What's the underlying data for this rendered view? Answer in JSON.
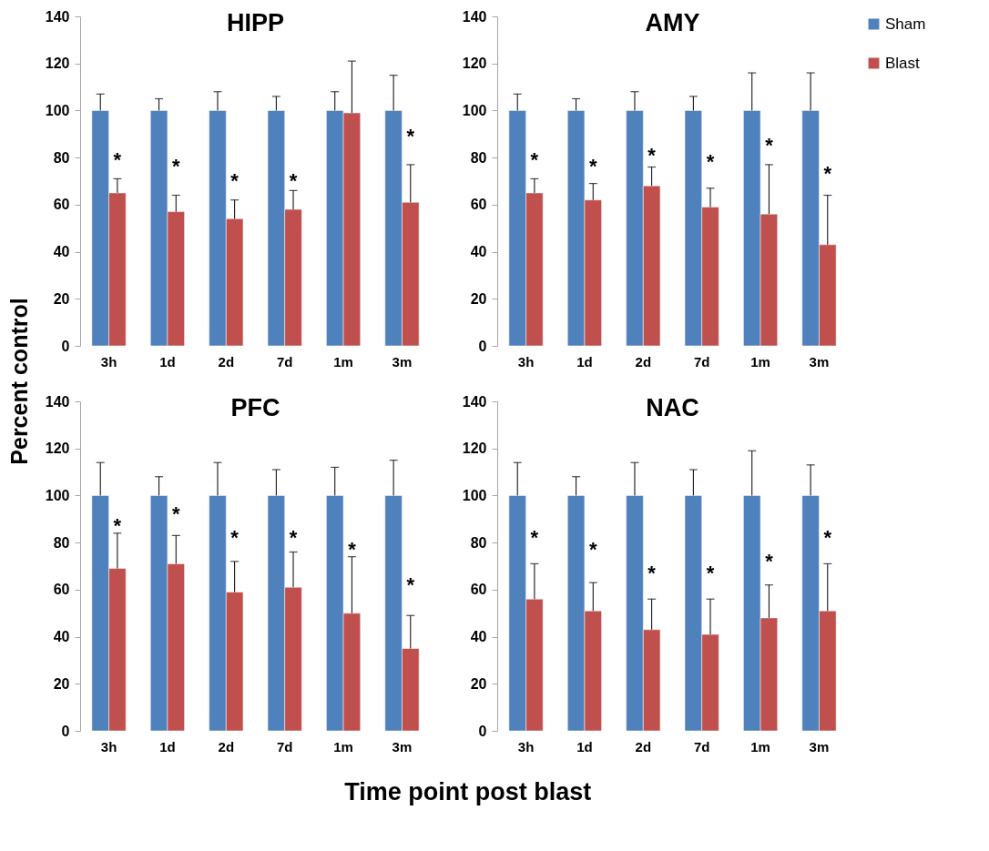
{
  "chart_data": [
    {
      "type": "bar",
      "title": "HIPP",
      "ylabel": "Percent control",
      "categories": [
        "3h",
        "1d",
        "2d",
        "7d",
        "1m",
        "3m"
      ],
      "ylim": [
        0,
        140
      ],
      "yticks": [
        0,
        20,
        40,
        60,
        80,
        100,
        120,
        140
      ],
      "legend": false,
      "series": [
        {
          "color": "#4f81bd",
          "values": [
            100,
            100,
            100,
            100,
            100,
            100
          ],
          "errors": [
            [
              100,
              107
            ],
            [
              100,
              105
            ],
            [
              100,
              108
            ],
            [
              100,
              106
            ],
            [
              100,
              108
            ],
            [
              100,
              115
            ]
          ]
        },
        {
          "color": "#c0504d",
          "values": [
            65,
            57,
            54,
            58,
            99,
            61
          ],
          "errors": [
            [
              65,
              71
            ],
            [
              57,
              64
            ],
            [
              54,
              62
            ],
            [
              58,
              66
            ],
            [
              99,
              121
            ],
            [
              61,
              77
            ]
          ]
        }
      ],
      "annotations": [
        {
          "text": "*",
          "x": "3h",
          "y": 79
        },
        {
          "text": "*",
          "x": "1d",
          "y": 76
        },
        {
          "text": "*",
          "x": "2d",
          "y": 70
        },
        {
          "text": "*",
          "x": "7d",
          "y": 70
        },
        {
          "text": "*",
          "x": "3m",
          "y": 89
        }
      ]
    },
    {
      "type": "bar",
      "title": "AMY",
      "categories": [
        "3h",
        "1d",
        "2d",
        "7d",
        "1m",
        "3m"
      ],
      "ylim": [
        0,
        140
      ],
      "yticks": [
        0,
        20,
        40,
        60,
        80,
        100,
        120,
        140
      ],
      "legend": "right",
      "series": [
        {
          "name": "Sham",
          "color": "#4f81bd",
          "values": [
            100,
            100,
            100,
            100,
            100,
            100
          ],
          "errors": [
            [
              100,
              107
            ],
            [
              100,
              105
            ],
            [
              100,
              108
            ],
            [
              100,
              106
            ],
            [
              100,
              116
            ],
            [
              100,
              116
            ]
          ]
        },
        {
          "name": "Blast",
          "color": "#c0504d",
          "values": [
            65,
            62,
            68,
            59,
            56,
            43
          ],
          "errors": [
            [
              65,
              71
            ],
            [
              62,
              69
            ],
            [
              68,
              76
            ],
            [
              59,
              67
            ],
            [
              56,
              77
            ],
            [
              43,
              64
            ]
          ]
        }
      ],
      "annotations": [
        {
          "text": "*",
          "x": "3h",
          "y": 79
        },
        {
          "text": "*",
          "x": "1d",
          "y": 76
        },
        {
          "text": "*",
          "x": "2d",
          "y": 81
        },
        {
          "text": "*",
          "x": "7d",
          "y": 78
        },
        {
          "text": "*",
          "x": "1m",
          "y": 85
        },
        {
          "text": "*",
          "x": "3m",
          "y": 73
        }
      ]
    },
    {
      "type": "bar",
      "title": "PFC",
      "xlabel": "Time point post blast",
      "categories": [
        "3h",
        "1d",
        "2d",
        "7d",
        "1m",
        "3m"
      ],
      "ylim": [
        0,
        140
      ],
      "yticks": [
        0,
        20,
        40,
        60,
        80,
        100,
        120,
        140
      ],
      "legend": false,
      "series": [
        {
          "color": "#4f81bd",
          "values": [
            100,
            100,
            100,
            100,
            100,
            100
          ],
          "errors": [
            [
              100,
              114
            ],
            [
              100,
              108
            ],
            [
              100,
              114
            ],
            [
              100,
              111
            ],
            [
              100,
              112
            ],
            [
              100,
              115
            ]
          ]
        },
        {
          "color": "#c0504d",
          "values": [
            69,
            71,
            59,
            61,
            50,
            35
          ],
          "errors": [
            [
              69,
              84
            ],
            [
              71,
              83
            ],
            [
              59,
              72
            ],
            [
              61,
              76
            ],
            [
              50,
              74
            ],
            [
              35,
              49
            ]
          ]
        }
      ],
      "annotations": [
        {
          "text": "*",
          "x": "3h",
          "y": 87
        },
        {
          "text": "*",
          "x": "1d",
          "y": 92
        },
        {
          "text": "*",
          "x": "2d",
          "y": 82
        },
        {
          "text": "*",
          "x": "7d",
          "y": 82
        },
        {
          "text": "*",
          "x": "1m",
          "y": 77
        },
        {
          "text": "*",
          "x": "3m",
          "y": 62
        }
      ]
    },
    {
      "type": "bar",
      "title": "NAC",
      "categories": [
        "3h",
        "1d",
        "2d",
        "7d",
        "1m",
        "3m"
      ],
      "ylim": [
        0,
        140
      ],
      "yticks": [
        0,
        20,
        40,
        60,
        80,
        100,
        120,
        140
      ],
      "legend": false,
      "series": [
        {
          "color": "#4f81bd",
          "values": [
            100,
            100,
            100,
            100,
            100,
            100
          ],
          "errors": [
            [
              100,
              114
            ],
            [
              100,
              108
            ],
            [
              100,
              114
            ],
            [
              100,
              111
            ],
            [
              100,
              119
            ],
            [
              100,
              113
            ]
          ]
        },
        {
          "color": "#c0504d",
          "values": [
            56,
            51,
            43,
            41,
            48,
            51
          ],
          "errors": [
            [
              56,
              71
            ],
            [
              51,
              63
            ],
            [
              43,
              56
            ],
            [
              41,
              56
            ],
            [
              48,
              62
            ],
            [
              51,
              71
            ]
          ]
        }
      ],
      "annotations": [
        {
          "text": "*",
          "x": "3h",
          "y": 82
        },
        {
          "text": "*",
          "x": "1d",
          "y": 77
        },
        {
          "text": "*",
          "x": "2d",
          "y": 67
        },
        {
          "text": "*",
          "x": "7d",
          "y": 67
        },
        {
          "text": "*",
          "x": "1m",
          "y": 72
        },
        {
          "text": "*",
          "x": "3m",
          "y": 82
        }
      ]
    }
  ]
}
